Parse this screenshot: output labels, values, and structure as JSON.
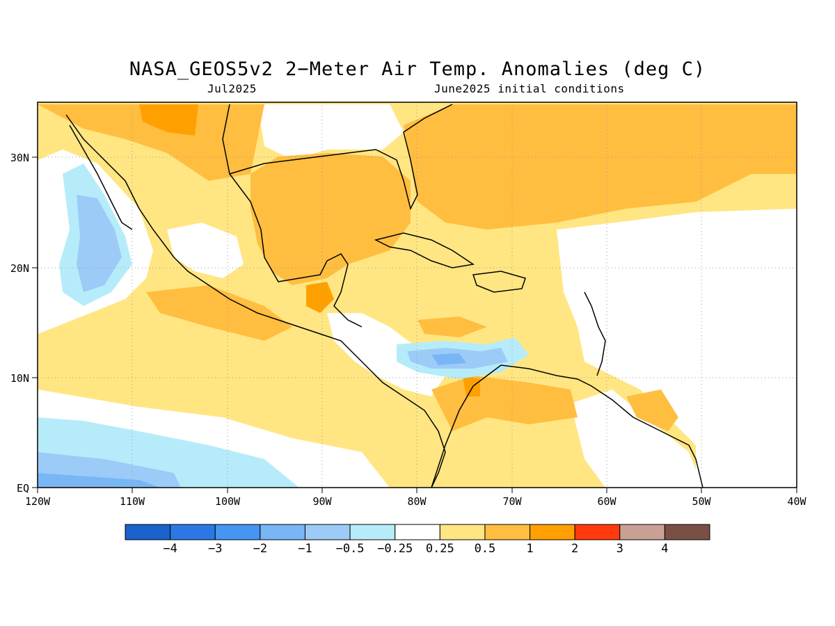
{
  "header": {
    "title": "NASA_GEOS5v2 2−Meter Air Temp. Anomalies (deg C)",
    "subtitle_left": "Jul2025",
    "subtitle_right": "June2025 initial conditions"
  },
  "map": {
    "region": "Mexico, Central America, Caribbean, Gulf of Mexico",
    "lon_range": [
      -120,
      -40
    ],
    "lat_range": [
      0,
      35
    ],
    "x_ticks": [
      "120W",
      "110W",
      "100W",
      "90W",
      "80W",
      "70W",
      "60W",
      "50W",
      "40W"
    ],
    "y_ticks": [
      "30N",
      "20N",
      "10N",
      "EQ"
    ],
    "gridlines": "dotted"
  },
  "colorbar": {
    "colors": [
      "#1a62cc",
      "#2b78e4",
      "#4496f0",
      "#78b6f5",
      "#9ccbf7",
      "#b6ecfa",
      "#ffffff",
      "#ffe682",
      "#ffbe40",
      "#ffa000",
      "#ff3a0c",
      "#c9a093",
      "#7a5045"
    ],
    "labels": [
      "−4",
      "−3",
      "−2",
      "−1",
      "−0.5",
      "−0.25",
      "0.25",
      "0.5",
      "1",
      "2",
      "3",
      "4"
    ]
  }
}
